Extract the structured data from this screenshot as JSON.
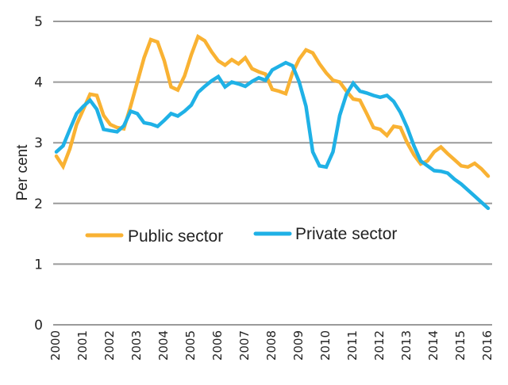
{
  "chart_data": {
    "type": "line",
    "title": "",
    "xlabel": "",
    "ylabel": "Per cent",
    "ylim": [
      0,
      5
    ],
    "yticks": [
      0,
      1,
      2,
      3,
      4,
      5
    ],
    "ytick_labels": [
      "0",
      "1",
      "2",
      "3",
      "4",
      "5"
    ],
    "xlim": [
      2000,
      2016
    ],
    "xticks": [
      2000,
      2001,
      2002,
      2003,
      2004,
      2005,
      2006,
      2007,
      2008,
      2009,
      2010,
      2011,
      2012,
      2013,
      2014,
      2015,
      2016
    ],
    "xtick_labels": [
      "2000",
      "2001",
      "2002",
      "2003",
      "2004",
      "2005",
      "2006",
      "2007",
      "2008",
      "2009",
      "2010",
      "2011",
      "2012",
      "2013",
      "2014",
      "2015",
      "2016"
    ],
    "grid": "horizontal",
    "legend_position": "middle-center",
    "x_frequency": "quarterly",
    "x_start": 2000,
    "x_step": 0.25,
    "series": [
      {
        "name": "Public sector",
        "color": "#F9B233",
        "values": [
          2.78,
          2.61,
          2.9,
          3.3,
          3.55,
          3.8,
          3.78,
          3.45,
          3.3,
          3.25,
          3.23,
          3.6,
          4.0,
          4.4,
          4.7,
          4.66,
          4.35,
          3.92,
          3.87,
          4.1,
          4.45,
          4.75,
          4.68,
          4.5,
          4.35,
          4.28,
          4.37,
          4.3,
          4.4,
          4.22,
          4.17,
          4.13,
          3.88,
          3.85,
          3.81,
          4.15,
          4.38,
          4.53,
          4.48,
          4.3,
          4.15,
          4.03,
          4.0,
          3.85,
          3.72,
          3.7,
          3.48,
          3.25,
          3.22,
          3.12,
          3.27,
          3.25,
          3.0,
          2.8,
          2.65,
          2.7,
          2.85,
          2.93,
          2.82,
          2.72,
          2.62,
          2.6,
          2.66,
          2.57,
          2.45
        ]
      },
      {
        "name": "Private sector",
        "color": "#1FB1E6",
        "values": [
          2.85,
          2.95,
          3.22,
          3.48,
          3.6,
          3.7,
          3.55,
          3.22,
          3.2,
          3.18,
          3.28,
          3.52,
          3.48,
          3.33,
          3.31,
          3.27,
          3.37,
          3.48,
          3.44,
          3.52,
          3.62,
          3.83,
          3.93,
          4.02,
          4.09,
          3.92,
          4.0,
          3.97,
          3.93,
          4.01,
          4.07,
          4.03,
          4.2,
          4.26,
          4.32,
          4.27,
          4.0,
          3.6,
          2.85,
          2.62,
          2.6,
          2.85,
          3.45,
          3.8,
          3.98,
          3.85,
          3.82,
          3.78,
          3.75,
          3.78,
          3.68,
          3.5,
          3.25,
          2.95,
          2.7,
          2.62,
          2.54,
          2.53,
          2.5,
          2.4,
          2.32,
          2.22,
          2.12,
          2.02,
          1.92
        ]
      }
    ]
  }
}
